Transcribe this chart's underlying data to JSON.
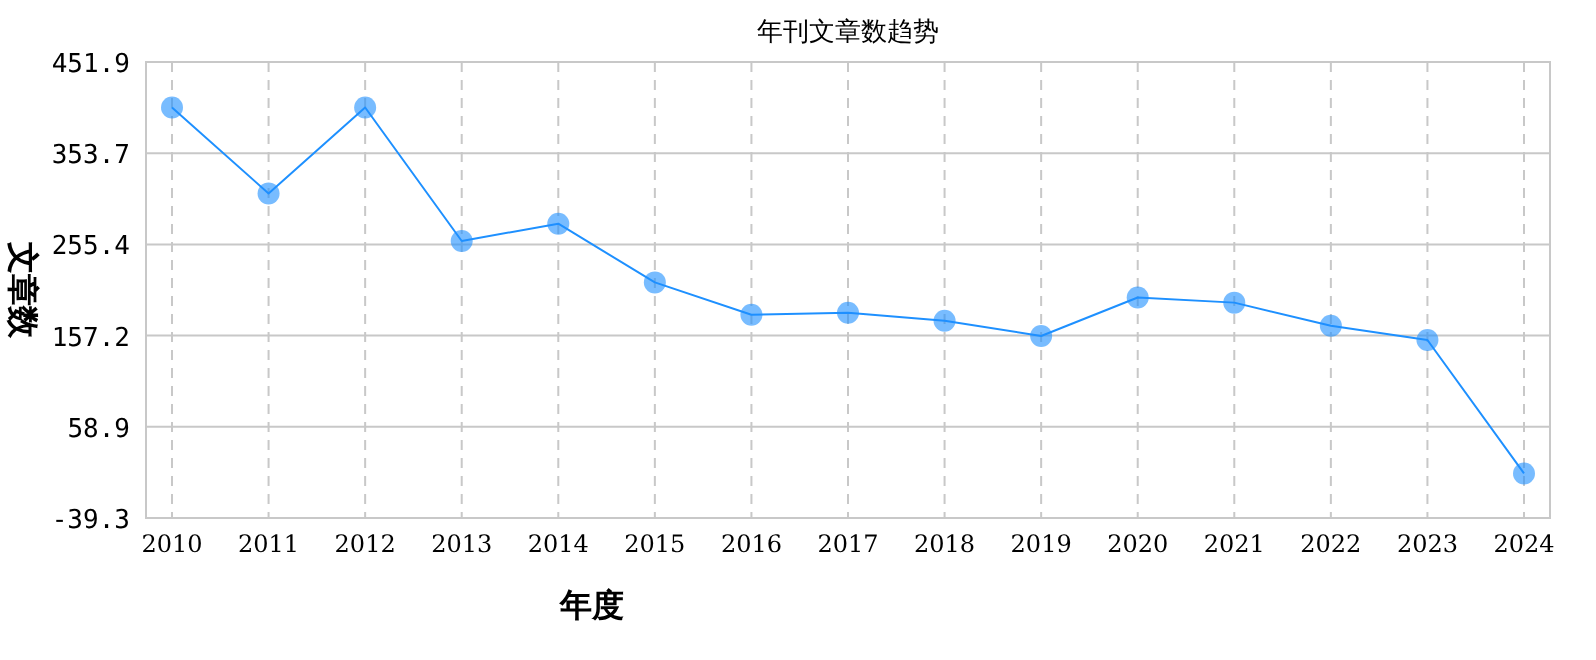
{
  "chart_data": {
    "type": "line",
    "title": "年刊文章数趋势",
    "xlabel": "年度",
    "ylabel": "文章数",
    "categories": [
      "2010",
      "2011",
      "2012",
      "2013",
      "2014",
      "2015",
      "2016",
      "2017",
      "2018",
      "2019",
      "2020",
      "2021",
      "2022",
      "2023",
      "2024"
    ],
    "series": [
      {
        "color": "#1e90ff",
        "values": [
          402.9,
          310.3,
          402.9,
          259.1,
          277.7,
          214.5,
          179.6,
          181.8,
          173.1,
          156.8,
          198.2,
          192.7,
          167.7,
          152.4,
          8.7
        ]
      }
    ],
    "ylim": [
      -39.3,
      451.9
    ],
    "yticks": [
      -39.3,
      58.9,
      157.2,
      255.4,
      353.7,
      451.9
    ],
    "grid": true,
    "marker": "circle"
  }
}
